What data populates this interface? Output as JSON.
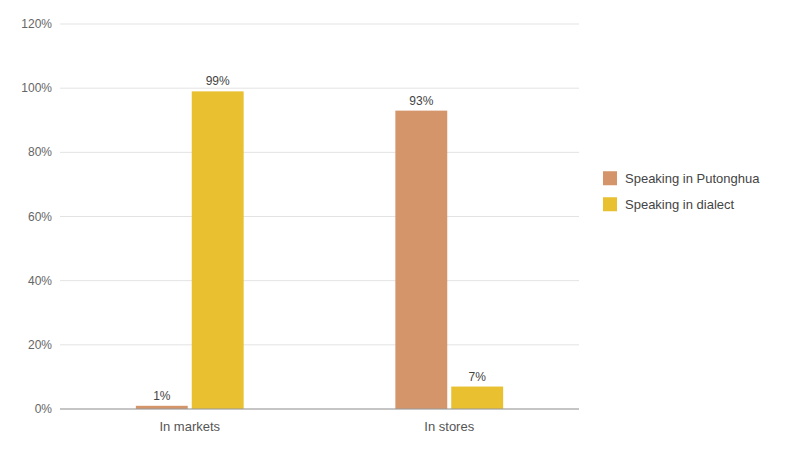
{
  "chart_data": {
    "type": "bar",
    "categories": [
      "In markets",
      "In stores"
    ],
    "series": [
      {
        "name": "Speaking in Putonghua",
        "color": "#D4956A",
        "values": [
          1,
          93
        ],
        "value_labels": [
          "1%",
          "93%"
        ]
      },
      {
        "name": "Speaking in dialect",
        "color": "#E8C030",
        "values": [
          99,
          7
        ],
        "value_labels": [
          "99%",
          "7%"
        ]
      }
    ],
    "ylim": [
      0,
      120
    ],
    "yticks": [
      {
        "value": 0,
        "label": "0%"
      },
      {
        "value": 20,
        "label": "20%"
      },
      {
        "value": 40,
        "label": "40%"
      },
      {
        "value": 60,
        "label": "60%"
      },
      {
        "value": 80,
        "label": "80%"
      },
      {
        "value": 100,
        "label": "100%"
      },
      {
        "value": 120,
        "label": "120%"
      }
    ],
    "grid": true,
    "legend": "right",
    "data_labels": true
  }
}
